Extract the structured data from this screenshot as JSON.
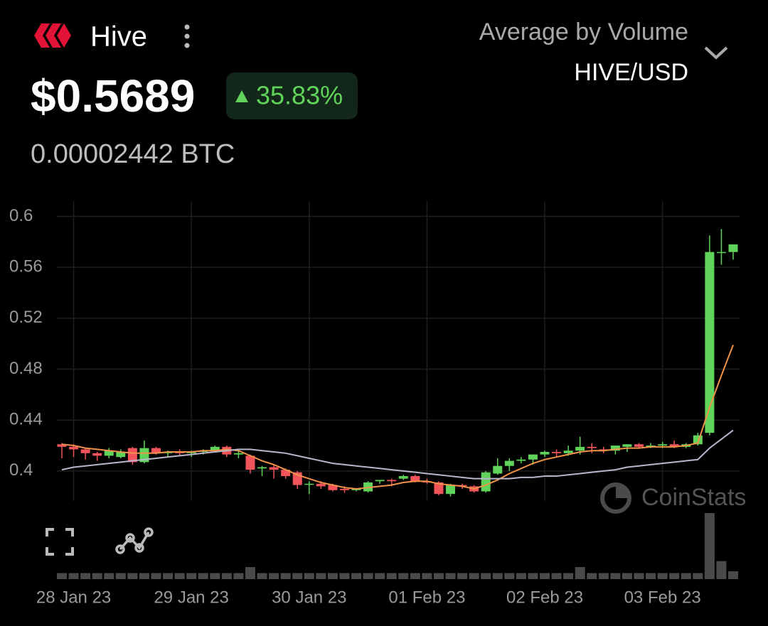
{
  "header": {
    "name": "Hive",
    "price": "$0.5689",
    "change": "35.83%",
    "btc_price": "0.00002442 BTC",
    "average_mode": "Average by Volume",
    "pair": "HIVE/USD",
    "watermark": "CoinStats"
  },
  "chart_data": {
    "type": "candlestick",
    "categories": [
      null,
      "28 Jan 23",
      null,
      null,
      null,
      null,
      null,
      null,
      null,
      null,
      null,
      "29 Jan 23",
      null,
      null,
      null,
      null,
      null,
      null,
      null,
      null,
      null,
      "30 Jan 23",
      null,
      null,
      null,
      null,
      null,
      null,
      null,
      null,
      null,
      "01 Feb 23",
      null,
      null,
      null,
      null,
      null,
      null,
      null,
      null,
      null,
      "02 Feb 23",
      null,
      null,
      null,
      null,
      null,
      null,
      null,
      null,
      null,
      "03 Feb 23",
      null,
      null,
      null,
      null,
      null,
      null
    ],
    "open": [
      0.421,
      0.419,
      0.417,
      0.414,
      0.412,
      0.411,
      0.418,
      0.407,
      0.418,
      0.414,
      0.415,
      0.414,
      0.415,
      0.416,
      0.419,
      0.413,
      0.412,
      0.402,
      0.403,
      0.401,
      0.399,
      0.39,
      0.39,
      0.389,
      0.386,
      0.385,
      0.384,
      0.392,
      0.393,
      0.394,
      0.396,
      0.392,
      0.391,
      0.382,
      0.389,
      0.388,
      0.384,
      0.398,
      0.404,
      0.408,
      0.409,
      0.413,
      0.415,
      0.414,
      0.416,
      0.419,
      0.417,
      0.416,
      0.419,
      0.421,
      0.419,
      0.42,
      0.421,
      0.419,
      0.421,
      0.43,
      0.572,
      0.572
    ],
    "high": [
      0.422,
      0.421,
      0.418,
      0.415,
      0.418,
      0.417,
      0.419,
      0.424,
      0.419,
      0.416,
      0.417,
      0.416,
      0.417,
      0.42,
      0.42,
      0.416,
      0.413,
      0.404,
      0.405,
      0.402,
      0.4,
      0.392,
      0.392,
      0.39,
      0.388,
      0.386,
      0.392,
      0.393,
      0.394,
      0.397,
      0.397,
      0.394,
      0.392,
      0.39,
      0.39,
      0.389,
      0.4,
      0.41,
      0.41,
      0.411,
      0.413,
      0.416,
      0.417,
      0.42,
      0.427,
      0.422,
      0.419,
      0.42,
      0.421,
      0.422,
      0.422,
      0.423,
      0.424,
      0.422,
      0.43,
      0.585,
      0.59,
      0.578
    ],
    "low": [
      0.41,
      0.411,
      0.409,
      0.408,
      0.41,
      0.41,
      0.405,
      0.406,
      0.413,
      0.411,
      0.412,
      0.411,
      0.413,
      0.415,
      0.411,
      0.41,
      0.398,
      0.396,
      0.394,
      0.394,
      0.386,
      0.382,
      0.386,
      0.384,
      0.383,
      0.384,
      0.383,
      0.39,
      0.388,
      0.393,
      0.391,
      0.39,
      0.381,
      0.38,
      0.386,
      0.383,
      0.383,
      0.397,
      0.4,
      0.406,
      0.405,
      0.411,
      0.411,
      0.412,
      0.413,
      0.414,
      0.414,
      0.413,
      0.415,
      0.418,
      0.418,
      0.418,
      0.418,
      0.418,
      0.42,
      0.428,
      0.562,
      0.566
    ],
    "close": [
      0.419,
      0.417,
      0.414,
      0.412,
      0.416,
      0.415,
      0.407,
      0.418,
      0.414,
      0.415,
      0.414,
      0.415,
      0.416,
      0.419,
      0.413,
      0.414,
      0.401,
      0.403,
      0.401,
      0.396,
      0.389,
      0.39,
      0.388,
      0.385,
      0.385,
      0.386,
      0.391,
      0.393,
      0.392,
      0.396,
      0.392,
      0.391,
      0.382,
      0.389,
      0.388,
      0.384,
      0.399,
      0.404,
      0.408,
      0.409,
      0.413,
      0.415,
      0.414,
      0.416,
      0.419,
      0.418,
      0.416,
      0.42,
      0.421,
      0.419,
      0.42,
      0.421,
      0.419,
      0.421,
      0.428,
      0.572,
      0.572,
      0.578
    ],
    "up_color": "#5fd35a",
    "down_color": "#f2545b",
    "series": [
      {
        "color": "#f0934a",
        "values": [
          0.421,
          0.42,
          0.418,
          0.417,
          0.416,
          0.415,
          0.414,
          0.414,
          0.414,
          0.415,
          0.415,
          0.415,
          0.416,
          0.416,
          0.417,
          0.416,
          0.412,
          0.408,
          0.405,
          0.401,
          0.397,
          0.394,
          0.391,
          0.389,
          0.387,
          0.386,
          0.387,
          0.388,
          0.389,
          0.391,
          0.392,
          0.392,
          0.39,
          0.389,
          0.388,
          0.386,
          0.389,
          0.393,
          0.398,
          0.402,
          0.406,
          0.409,
          0.411,
          0.413,
          0.415,
          0.416,
          0.416,
          0.417,
          0.418,
          0.418,
          0.419,
          0.419,
          0.419,
          0.42,
          0.422,
          0.45,
          0.475,
          0.499
        ]
      },
      {
        "color": "#b9b6cc",
        "values": [
          0.401,
          0.403,
          0.404,
          0.405,
          0.406,
          0.407,
          0.408,
          0.409,
          0.41,
          0.411,
          0.412,
          0.413,
          0.414,
          0.415,
          0.416,
          0.417,
          0.417,
          0.416,
          0.415,
          0.414,
          0.412,
          0.41,
          0.408,
          0.406,
          0.405,
          0.404,
          0.403,
          0.402,
          0.401,
          0.4,
          0.399,
          0.398,
          0.397,
          0.396,
          0.395,
          0.394,
          0.394,
          0.394,
          0.394,
          0.395,
          0.395,
          0.396,
          0.396,
          0.397,
          0.398,
          0.399,
          0.4,
          0.401,
          0.403,
          0.404,
          0.405,
          0.406,
          0.407,
          0.408,
          0.409,
          0.418,
          0.425,
          0.432
        ]
      }
    ],
    "volume": [
      1,
      1,
      1,
      1,
      1,
      1,
      1,
      1,
      1,
      1,
      1,
      1,
      1,
      1,
      1,
      1,
      2,
      1,
      1,
      1,
      1,
      1,
      1,
      1,
      1,
      1,
      1,
      1,
      1,
      1,
      1,
      1,
      1,
      1,
      1,
      1,
      1,
      1,
      1,
      1,
      1,
      1,
      1,
      1,
      2,
      1,
      1,
      1,
      1,
      1,
      1,
      1,
      1,
      1,
      1,
      11,
      3,
      1.3
    ],
    "volume_color": "#4a4a4a",
    "ylim": [
      0.3765,
      0.612
    ],
    "yticks": [
      0.4,
      0.44,
      0.48,
      0.52,
      0.56,
      0.6
    ],
    "grid": true
  }
}
